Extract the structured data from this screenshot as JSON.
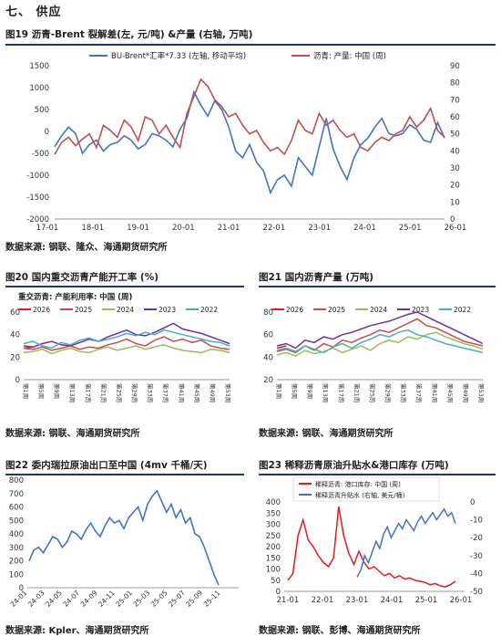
{
  "section": {
    "title": "七、 供应"
  },
  "colors": {
    "blue": "#4472C4",
    "red": "#C0504D",
    "green": "#9BBB59",
    "purple": "#7030A0",
    "cyan": "#4BACC6",
    "darkred": "#E41A1C",
    "rule": "#1f3864"
  },
  "figures": [
    {
      "title": "图19  沥青-Brent 裂解差(左, 元/吨) &产量 (右轴, 万吨)",
      "source": "数据来源: 钢联、隆众、海通期货研究所"
    },
    {
      "title": "图20  国内重交沥青产能开工率 (%)",
      "source": "数据来源: 钢联、海通期货研究所"
    },
    {
      "title": "图21  国内沥青产量 (万吨)",
      "source": "数据来源: 钢联、海通期货研究所"
    },
    {
      "title": "图22  委内瑞拉原油出口至中国 (4mv 千桶/天)",
      "source": "数据来源: Kpler、海通期货研究所"
    },
    {
      "title": "图23  稀释沥青原油升贴水&港口库存 (万吨)",
      "source": "数据来源: 钢联、彭博、海通期货研究所"
    }
  ],
  "chart_data": [
    {
      "type": "line",
      "x_ticks": [
        "17-01",
        "18-01",
        "19-01",
        "20-01",
        "21-01",
        "22-01",
        "23-01",
        "24-01",
        "25-01",
        "26-01"
      ],
      "y_left_ticks": [
        "1500",
        "1000",
        "500",
        "0",
        "-500",
        "-1000",
        "-1500",
        "-2000"
      ],
      "y_right_ticks": [
        "90",
        "80",
        "70",
        "60",
        "50",
        "40",
        "30",
        "20",
        "10",
        "0"
      ],
      "ylim_left": [
        -2000,
        1500
      ],
      "ylim_right": [
        0,
        90
      ],
      "series": [
        {
          "name": "BU-Brent*汇率*7.33 (左轴, 移动平均)",
          "axis": "left",
          "color": "#4472C4",
          "values": [
            -350,
            -100,
            100,
            -50,
            -500,
            -300,
            -200,
            -450,
            -300,
            -250,
            -100,
            -200,
            -400,
            -300,
            -50,
            -100,
            -200,
            -350,
            50,
            300,
            900,
            600,
            350,
            700,
            500,
            100,
            -450,
            -600,
            -300,
            -700,
            -900,
            -1400,
            -1100,
            -1000,
            -1250,
            -600,
            -800,
            -1000,
            -350,
            300,
            -400,
            -800,
            -1100,
            -600,
            -300,
            -150,
            100,
            300,
            -50,
            -100,
            -50,
            150,
            50,
            -200,
            -250,
            200,
            -150
          ]
        },
        {
          "name": "沥青: 产量: 中国 (周)",
          "axis": "right",
          "color": "#C0504D",
          "values": [
            38,
            45,
            48,
            43,
            47,
            50,
            42,
            55,
            52,
            48,
            58,
            54,
            46,
            60,
            58,
            50,
            55,
            48,
            42,
            62,
            72,
            82,
            78,
            70,
            66,
            60,
            62,
            55,
            50,
            52,
            45,
            40,
            42,
            38,
            46,
            58,
            52,
            50,
            62,
            55,
            58,
            52,
            48,
            50,
            42,
            40,
            45,
            48,
            46,
            50,
            52,
            60,
            54,
            58,
            65,
            52,
            48
          ]
        }
      ]
    },
    {
      "type": "line",
      "chart_title": "重交沥青: 产能利用率: 中国 (周)",
      "x_ticks": [
        "第1周",
        "第5周",
        "第9周",
        "第13周",
        "第17周",
        "第21周",
        "第25周",
        "第29周",
        "第33周",
        "第37周",
        "第41周",
        "第45周",
        "第49周",
        "第53周"
      ],
      "y_ticks": [
        "60",
        "40",
        "20",
        "0"
      ],
      "ylim": [
        0,
        60
      ],
      "series": [
        {
          "name": "2026",
          "color": "#E41A1C",
          "values": [
            28,
            29
          ]
        },
        {
          "name": "2025",
          "color": "#C0504D",
          "values": [
            28,
            27,
            29,
            26,
            28,
            30,
            27,
            29,
            28,
            31,
            33,
            36,
            32,
            30,
            35,
            38,
            34,
            36,
            33,
            35,
            30,
            28,
            27
          ]
        },
        {
          "name": "2024",
          "color": "#9BBB59",
          "values": [
            24,
            25,
            27,
            23,
            26,
            28,
            25,
            24,
            27,
            29,
            26,
            28,
            30,
            27,
            29,
            31,
            28,
            26,
            25,
            24,
            27,
            26,
            24
          ]
        },
        {
          "name": "2023",
          "color": "#7030A0",
          "values": [
            30,
            29,
            32,
            34,
            31,
            30,
            33,
            36,
            34,
            38,
            41,
            44,
            40,
            39,
            42,
            46,
            50,
            45,
            43,
            41,
            38,
            35,
            32
          ]
        },
        {
          "name": "2022",
          "color": "#4BACC6",
          "values": [
            32,
            34,
            30,
            28,
            33,
            31,
            35,
            37,
            34,
            36,
            38,
            41,
            39,
            42,
            40,
            44,
            42,
            40,
            38,
            36,
            34,
            33,
            30
          ]
        }
      ]
    },
    {
      "type": "line",
      "x_ticks": [
        "第1周",
        "第5周",
        "第9周",
        "第13周",
        "第17周",
        "第21周",
        "第25周",
        "第29周",
        "第33周",
        "第37周",
        "第41周",
        "第45周",
        "第49周",
        "第53周"
      ],
      "y_ticks": [
        "80",
        "60",
        "40",
        "20"
      ],
      "ylim": [
        20,
        80
      ],
      "series": [
        {
          "name": "2026",
          "color": "#E41A1C",
          "values": [
            48,
            50
          ]
        },
        {
          "name": "2025",
          "color": "#C0504D",
          "values": [
            45,
            47,
            44,
            50,
            46,
            52,
            49,
            55,
            53,
            57,
            60,
            64,
            62,
            66,
            70,
            74,
            68,
            66,
            62,
            58,
            54,
            52,
            50
          ]
        },
        {
          "name": "2024",
          "color": "#9BBB59",
          "values": [
            42,
            44,
            41,
            46,
            43,
            45,
            48,
            44,
            47,
            50,
            46,
            52,
            55,
            53,
            58,
            56,
            60,
            62,
            58,
            55,
            52,
            50,
            47
          ]
        },
        {
          "name": "2023",
          "color": "#7030A0",
          "values": [
            50,
            52,
            48,
            55,
            53,
            58,
            56,
            60,
            62,
            65,
            68,
            70,
            72,
            75,
            78,
            80,
            76,
            72,
            68,
            64,
            60,
            56,
            52
          ]
        },
        {
          "name": "2022",
          "color": "#4BACC6",
          "values": [
            46,
            48,
            45,
            50,
            47,
            44,
            49,
            52,
            48,
            53,
            56,
            60,
            58,
            62,
            64,
            60,
            58,
            55,
            52,
            50,
            48,
            46,
            44
          ]
        }
      ]
    },
    {
      "type": "line",
      "x_ticks": [
        "24-01",
        "24-03",
        "24-05",
        "24-07",
        "24-09",
        "24-11",
        "25-01",
        "25-03",
        "25-05",
        "25-07",
        "25-09",
        "25-11"
      ],
      "y_ticks": [
        "800",
        "700",
        "600",
        "500",
        "400",
        "300",
        "200",
        "100",
        "0"
      ],
      "ylim": [
        0,
        800
      ],
      "series": [
        {
          "name": "委内瑞拉原油出口至中国",
          "color": "#4472C4",
          "values": [
            200,
            280,
            300,
            260,
            320,
            380,
            360,
            300,
            340,
            420,
            400,
            360,
            430,
            480,
            420,
            380,
            460,
            520,
            480,
            500,
            440,
            520,
            560,
            600,
            500,
            620,
            680,
            720,
            640,
            560,
            620,
            520,
            580,
            480,
            520,
            400,
            380,
            300,
            200,
            100,
            20
          ]
        }
      ]
    },
    {
      "type": "line",
      "legend": [
        "稀释沥青: 港口库存: 中国 (周)",
        "稀释沥青升贴水 (右轴, 美元/桶)"
      ],
      "x_ticks": [
        "21-01",
        "22-01",
        "23-01",
        "24-01",
        "25-01",
        "26-01"
      ],
      "y_left_ticks": [
        "400",
        "350",
        "300",
        "250",
        "200",
        "150",
        "100",
        "50",
        "0"
      ],
      "y_right_ticks": [
        "0",
        "-10",
        "-20",
        "-30",
        "-40",
        "-50"
      ],
      "ylim_left": [
        0,
        400
      ],
      "ylim_right": [
        -50,
        0
      ],
      "series": [
        {
          "name": "稀释沥青: 港口库存: 中国 (周)",
          "axis": "left",
          "color": "#E41A1C",
          "values": [
            50,
            80,
            250,
            320,
            230,
            200,
            160,
            130,
            110,
            150,
            380,
            250,
            170,
            120,
            180,
            130,
            100,
            110,
            90,
            70,
            80,
            60,
            70,
            55,
            60,
            50,
            45,
            40,
            30,
            35,
            25,
            20,
            30,
            45
          ]
        },
        {
          "name": "稀释沥青升贴水 (右轴, 美元/桶)",
          "axis": "right",
          "color": "#4472C4",
          "values": [
            -42,
            -38,
            -30,
            -34,
            -28,
            -22,
            -26,
            -18,
            -14,
            -20,
            -16,
            -12,
            -15,
            -10,
            -13,
            -16,
            -11,
            -8,
            -12,
            -9,
            -6,
            -10,
            -7,
            -4,
            -8,
            -6,
            -12
          ]
        }
      ]
    }
  ]
}
